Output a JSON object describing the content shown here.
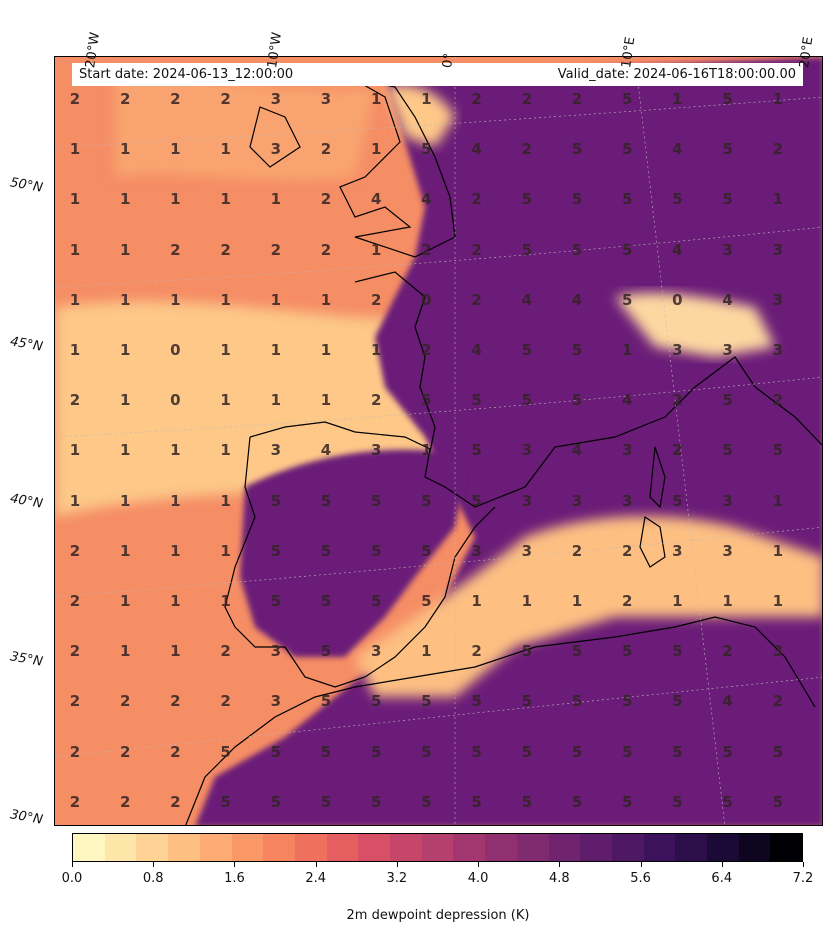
{
  "header": {
    "start_date": "Start date: 2024-06-13_12:00:00",
    "valid_date": "Valid_date: 2024-06-16T18:00:00.00"
  },
  "lon_labels": [
    "20°W",
    "10°W",
    "0°",
    "10°E",
    "20°E"
  ],
  "lat_labels": [
    "50°N",
    "45°N",
    "40°N",
    "35°N",
    "30°N"
  ],
  "grid_values": [
    [
      "2",
      "2",
      "2",
      "2",
      "3",
      "3",
      "1",
      "1",
      "2",
      "2",
      "2",
      "5",
      "1",
      "5",
      "1"
    ],
    [
      "1",
      "1",
      "1",
      "1",
      "3",
      "2",
      "1",
      "5",
      "4",
      "2",
      "5",
      "5",
      "4",
      "5",
      "2"
    ],
    [
      "1",
      "1",
      "1",
      "1",
      "1",
      "2",
      "4",
      "4",
      "2",
      "5",
      "5",
      "5",
      "5",
      "5",
      "1"
    ],
    [
      "1",
      "1",
      "2",
      "2",
      "2",
      "2",
      "1",
      "2",
      "2",
      "5",
      "5",
      "5",
      "4",
      "3",
      "3"
    ],
    [
      "1",
      "1",
      "1",
      "1",
      "1",
      "1",
      "2",
      "0",
      "2",
      "4",
      "4",
      "5",
      "0",
      "4",
      "3"
    ],
    [
      "1",
      "1",
      "0",
      "1",
      "1",
      "1",
      "1",
      "2",
      "4",
      "5",
      "5",
      "1",
      "3",
      "3",
      "3"
    ],
    [
      "2",
      "1",
      "0",
      "1",
      "1",
      "1",
      "2",
      "5",
      "5",
      "5",
      "5",
      "4",
      "2",
      "5",
      "2"
    ],
    [
      "1",
      "1",
      "1",
      "1",
      "3",
      "4",
      "3",
      "1",
      "5",
      "3",
      "4",
      "3",
      "2",
      "5",
      "5"
    ],
    [
      "1",
      "1",
      "1",
      "1",
      "5",
      "5",
      "5",
      "5",
      "5",
      "3",
      "3",
      "3",
      "5",
      "3",
      "1"
    ],
    [
      "2",
      "1",
      "1",
      "1",
      "5",
      "5",
      "5",
      "5",
      "3",
      "3",
      "2",
      "2",
      "3",
      "3",
      "1"
    ],
    [
      "2",
      "1",
      "1",
      "1",
      "5",
      "5",
      "5",
      "5",
      "1",
      "1",
      "1",
      "2",
      "1",
      "1",
      "1"
    ],
    [
      "2",
      "1",
      "1",
      "2",
      "3",
      "5",
      "3",
      "1",
      "2",
      "5",
      "5",
      "5",
      "5",
      "2",
      "3"
    ],
    [
      "2",
      "2",
      "2",
      "2",
      "3",
      "5",
      "5",
      "5",
      "5",
      "5",
      "5",
      "5",
      "5",
      "4",
      "2"
    ],
    [
      "2",
      "2",
      "2",
      "5",
      "5",
      "5",
      "5",
      "5",
      "5",
      "5",
      "5",
      "5",
      "5",
      "5",
      "5"
    ],
    [
      "2",
      "2",
      "2",
      "5",
      "5",
      "5",
      "5",
      "5",
      "5",
      "5",
      "5",
      "5",
      "5",
      "5",
      "5"
    ]
  ],
  "colorbar": {
    "label": "2m dewpoint depression (K)",
    "ticks": [
      "0.0",
      "0.8",
      "1.6",
      "2.4",
      "3.2",
      "4.0",
      "4.8",
      "5.6",
      "6.4",
      "7.2"
    ],
    "colors": [
      "#fff6c0",
      "#fee5a8",
      "#fed294",
      "#fdbf82",
      "#fcac74",
      "#fa9868",
      "#f6845f",
      "#ef705d",
      "#e55e60",
      "#d75065",
      "#c6466a",
      "#b53f6d",
      "#a2376f",
      "#913070",
      "#802a70",
      "#70236f",
      "#5f1d6b",
      "#4e1865",
      "#3c125c",
      "#2c0f4a",
      "#1c0a36",
      "#0e0520",
      "#000004"
    ]
  },
  "fill_colors": {
    "sea_warm": "#f58d65",
    "land_moist": "#fdc888",
    "dry": "#6a1f78"
  }
}
